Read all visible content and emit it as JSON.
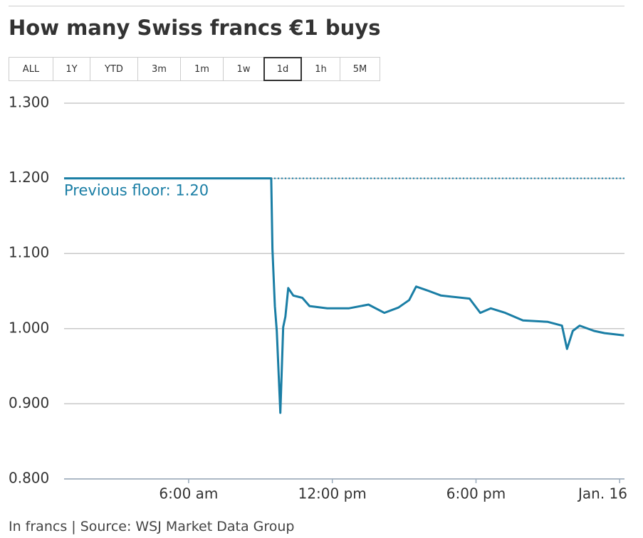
{
  "chart_data": {
    "type": "line",
    "title": "How many Swiss francs €1 buys",
    "range_buttons": [
      "ALL",
      "1Y",
      "YTD",
      "3m",
      "1m",
      "1w",
      "1d",
      "1h",
      "5M"
    ],
    "selected_range": "1d",
    "source": "In francs | Source: WSJ Market Data Group",
    "x": [
      0.8,
      9.45,
      9.5,
      9.6,
      9.68,
      9.83,
      9.95,
      10.04,
      10.16,
      10.37,
      10.75,
      11.05,
      11.79,
      12.68,
      13.51,
      14.17,
      14.76,
      15.21,
      15.5,
      15.95,
      16.54,
      17.73,
      18.18,
      18.62,
      19.22,
      19.96,
      21.0,
      21.59,
      21.8,
      22.04,
      22.33,
      22.93,
      23.37,
      24.18
    ],
    "series": [
      {
        "color": "#1a7ea5",
        "values": [
          1.2,
          1.2,
          1.106,
          1.03,
          0.997,
          0.888,
          1.002,
          1.016,
          1.054,
          1.044,
          1.041,
          1.03,
          1.027,
          1.027,
          1.032,
          1.021,
          1.028,
          1.038,
          1.056,
          1.051,
          1.044,
          1.04,
          1.021,
          1.027,
          1.021,
          1.011,
          1.009,
          1.004,
          0.973,
          0.997,
          1.004,
          0.997,
          0.994,
          0.991
        ]
      }
    ],
    "annotations": [
      {
        "text": "Previous floor: 1.20",
        "value": 1.2
      }
    ],
    "xlim": [
      0.8,
      24.2
    ],
    "xticks": [
      {
        "value": 6,
        "label": "6:00 am"
      },
      {
        "value": 12,
        "label": "12:00 pm"
      },
      {
        "value": 18,
        "label": "6:00 pm"
      },
      {
        "value": 24,
        "label": "Jan. 16"
      }
    ],
    "ylim": [
      0.8,
      1.3
    ],
    "yticks": [
      {
        "value": 0.8,
        "label": "0.800"
      },
      {
        "value": 0.9,
        "label": "0.900"
      },
      {
        "value": 1.0,
        "label": "1.000"
      },
      {
        "value": 1.1,
        "label": "1.100"
      },
      {
        "value": 1.2,
        "label": "1.200"
      },
      {
        "value": 1.3,
        "label": "1.300"
      }
    ],
    "grid": true
  }
}
